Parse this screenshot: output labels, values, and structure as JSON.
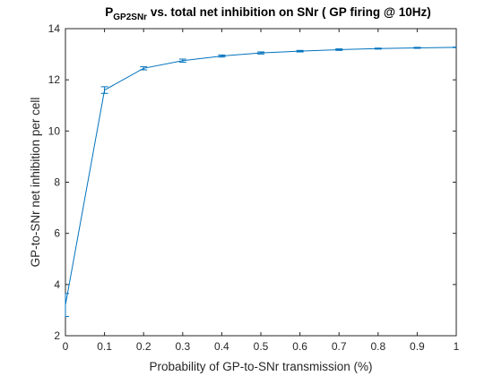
{
  "chart_data": {
    "type": "line",
    "title": {
      "prefix": "P",
      "subscript": "GP2SNr",
      "rest": " vs. total net inhibition on SNr ( GP firing @ 10Hz)"
    },
    "xlabel": "Probability of GP-to-SNr transmission (%)",
    "ylabel": "GP-to-SNr net inhibition per cell",
    "xlim": [
      0,
      1
    ],
    "ylim": [
      2,
      14
    ],
    "xticks": [
      "0",
      "0.1",
      "0.2",
      "0.3",
      "0.4",
      "0.5",
      "0.6",
      "0.7",
      "0.8",
      "0.9",
      "1"
    ],
    "yticks": [
      "2",
      "4",
      "6",
      "8",
      "10",
      "12",
      "14"
    ],
    "grid": false,
    "legend": "none",
    "series": [
      {
        "color": "#0072BD",
        "x": [
          0,
          0.1,
          0.2,
          0.3,
          0.4,
          0.5,
          0.6,
          0.7,
          0.8,
          0.9,
          1.0
        ],
        "y": [
          3.2,
          11.6,
          12.45,
          12.75,
          12.93,
          13.05,
          13.12,
          13.18,
          13.22,
          13.25,
          13.27
        ],
        "err": [
          0.45,
          0.13,
          0.06,
          0.06,
          0.04,
          0.04,
          0.03,
          0.03,
          0.02,
          0.02,
          0.01
        ]
      }
    ]
  }
}
